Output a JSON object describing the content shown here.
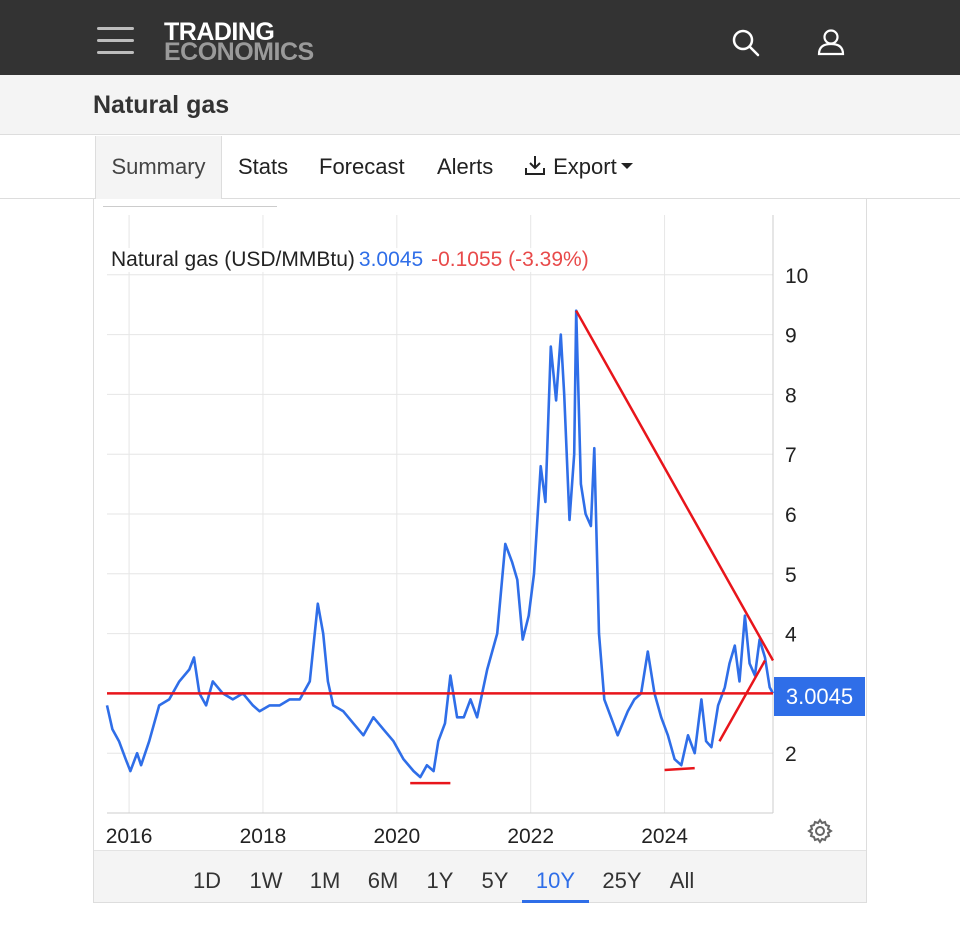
{
  "header": {
    "logo_line1": "TRADING",
    "logo_line2": "ECONOMICS",
    "menu_icon": "hamburger-menu-icon",
    "search_icon": "search-icon",
    "user_icon": "user-icon"
  },
  "page": {
    "title": "Natural gas"
  },
  "tabs": [
    {
      "label": "Summary",
      "active": true
    },
    {
      "label": "Stats"
    },
    {
      "label": "Forecast"
    },
    {
      "label": "Alerts"
    },
    {
      "label": "Export",
      "icon": "download-icon",
      "dropdown": true
    }
  ],
  "legend": {
    "name": "Natural gas (USD/MMBtu)",
    "price": "3.0045",
    "change": "-0.1055 (-3.39%)"
  },
  "current_price_tag": "3.0045",
  "ranges": [
    {
      "label": "1D"
    },
    {
      "label": "1W"
    },
    {
      "label": "1M"
    },
    {
      "label": "6M"
    },
    {
      "label": "1Y"
    },
    {
      "label": "5Y"
    },
    {
      "label": "10Y",
      "active": true
    },
    {
      "label": "25Y"
    },
    {
      "label": "All"
    }
  ],
  "colors": {
    "line": "#2f6ee8",
    "annotation": "#e8151b",
    "negative": "#e84a4a",
    "grid": "#e6e6e6"
  },
  "chart_data": {
    "type": "line",
    "title": "Natural gas (USD/MMBtu)",
    "xlabel": "",
    "ylabel": "",
    "x_ticks": [
      "2016",
      "2018",
      "2020",
      "2022",
      "2024"
    ],
    "y_ticks": [
      2,
      3,
      4,
      5,
      6,
      7,
      8,
      9,
      10
    ],
    "xlim": [
      2015.67,
      2025.62
    ],
    "ylim": [
      1,
      11
    ],
    "y_axis_position": "right",
    "grid": true,
    "series": [
      {
        "name": "Natural gas",
        "x": [
          2015.67,
          2015.75,
          2015.85,
          2015.95,
          2016.02,
          2016.12,
          2016.18,
          2016.3,
          2016.45,
          2016.6,
          2016.75,
          2016.9,
          2016.97,
          2017.05,
          2017.15,
          2017.25,
          2017.4,
          2017.55,
          2017.7,
          2017.85,
          2017.95,
          2018.1,
          2018.25,
          2018.4,
          2018.55,
          2018.7,
          2018.82,
          2018.9,
          2018.97,
          2019.05,
          2019.2,
          2019.35,
          2019.5,
          2019.65,
          2019.8,
          2019.95,
          2020.1,
          2020.25,
          2020.35,
          2020.45,
          2020.55,
          2020.62,
          2020.72,
          2020.8,
          2020.9,
          2021.0,
          2021.1,
          2021.2,
          2021.35,
          2021.5,
          2021.62,
          2021.72,
          2021.8,
          2021.88,
          2021.97,
          2022.05,
          2022.15,
          2022.22,
          2022.3,
          2022.38,
          2022.45,
          2022.5,
          2022.58,
          2022.65,
          2022.68,
          2022.75,
          2022.82,
          2022.9,
          2022.95,
          2023.02,
          2023.1,
          2023.2,
          2023.3,
          2023.45,
          2023.55,
          2023.65,
          2023.75,
          2023.85,
          2023.95,
          2024.05,
          2024.15,
          2024.25,
          2024.35,
          2024.45,
          2024.55,
          2024.62,
          2024.7,
          2024.8,
          2024.9,
          2024.97,
          2025.05,
          2025.12,
          2025.2,
          2025.27,
          2025.35,
          2025.42,
          2025.5,
          2025.57,
          2025.62
        ],
        "y": [
          2.8,
          2.4,
          2.2,
          1.9,
          1.7,
          2.0,
          1.8,
          2.2,
          2.8,
          2.9,
          3.2,
          3.4,
          3.6,
          3.0,
          2.8,
          3.2,
          3.0,
          2.9,
          3.0,
          2.8,
          2.7,
          2.8,
          2.8,
          2.9,
          2.9,
          3.2,
          4.5,
          4.0,
          3.2,
          2.8,
          2.7,
          2.5,
          2.3,
          2.6,
          2.4,
          2.2,
          1.9,
          1.7,
          1.6,
          1.8,
          1.7,
          2.2,
          2.5,
          3.3,
          2.6,
          2.6,
          2.9,
          2.6,
          3.4,
          4.0,
          5.5,
          5.2,
          4.9,
          3.9,
          4.3,
          5.0,
          6.8,
          6.2,
          8.8,
          7.9,
          9.0,
          8.0,
          5.9,
          7.0,
          9.4,
          6.5,
          6.0,
          5.8,
          7.1,
          4.0,
          2.9,
          2.6,
          2.3,
          2.7,
          2.9,
          3.0,
          3.7,
          3.0,
          2.6,
          2.3,
          1.9,
          1.8,
          2.3,
          2.0,
          2.9,
          2.2,
          2.1,
          2.8,
          3.1,
          3.5,
          3.8,
          3.2,
          4.3,
          3.5,
          3.3,
          3.9,
          3.6,
          3.1,
          3.0
        ]
      }
    ],
    "annotations": [
      {
        "type": "horizontal_line",
        "y": 3.0,
        "from_x": 2015.67,
        "to_x": 2025.62
      },
      {
        "type": "trend_line",
        "x1": 2022.68,
        "y1": 9.4,
        "x2": 2025.62,
        "y2": 3.55
      },
      {
        "type": "trend_line",
        "x1": 2024.82,
        "y1": 2.2,
        "x2": 2025.5,
        "y2": 3.55
      },
      {
        "type": "support_line",
        "x1": 2020.2,
        "y1": 1.5,
        "x2": 2020.8,
        "y2": 1.5
      },
      {
        "type": "support_line",
        "x1": 2024.0,
        "y1": 1.72,
        "x2": 2024.45,
        "y2": 1.75
      }
    ]
  }
}
